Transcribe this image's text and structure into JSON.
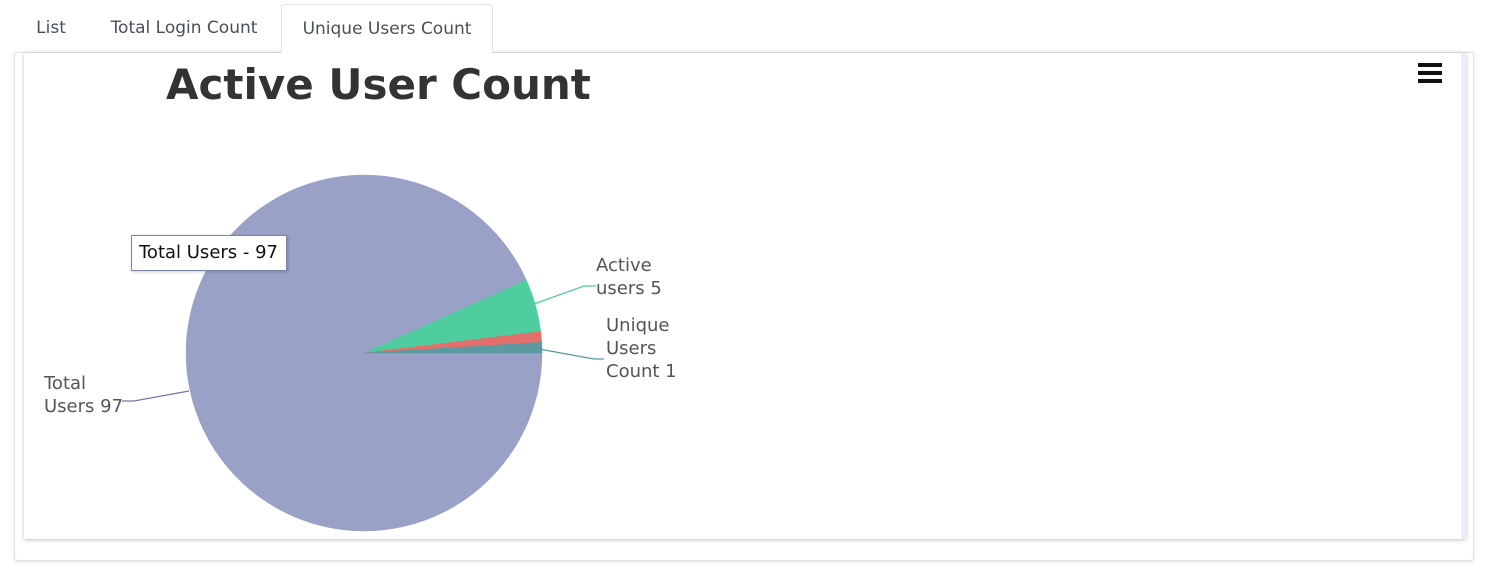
{
  "tabs": [
    {
      "label": "List",
      "active": false
    },
    {
      "label": "Total Login Count",
      "active": false
    },
    {
      "label": "Unique Users Count",
      "active": true
    }
  ],
  "chart_menu_icon": "hamburger-menu-icon",
  "tooltip": {
    "text": "Total Users - 97"
  },
  "chart_data": {
    "type": "pie",
    "title": "Active User Count",
    "slices": [
      {
        "name": "Total Users",
        "value": 97,
        "label": "Total Users 97",
        "label_lines": [
          "Total",
          "Users 97"
        ],
        "color": "#99a1c7"
      },
      {
        "name": "Active users",
        "value": 5,
        "label": "Active users 5",
        "label_lines": [
          "Active",
          "users 5"
        ],
        "color": "#50cd9f"
      },
      {
        "name": "Unique Users Count",
        "value": 1,
        "label": "Unique Users Count 1",
        "label_lines": [
          "Unique",
          "Users",
          "Count 1"
        ],
        "color": "#e46f6a"
      },
      {
        "name": "",
        "value": 1,
        "label": "",
        "label_lines": [],
        "color": "#5b9aa0"
      }
    ]
  }
}
